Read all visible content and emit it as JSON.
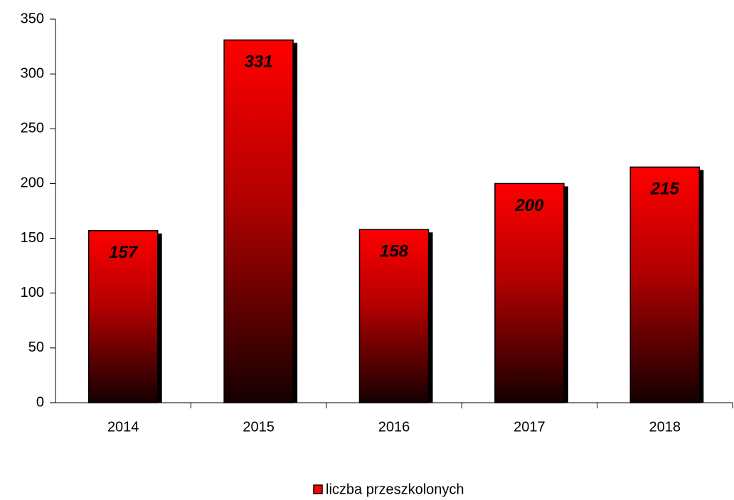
{
  "chart_data": {
    "type": "bar",
    "categories": [
      "2014",
      "2015",
      "2016",
      "2017",
      "2018"
    ],
    "series": [
      {
        "name": "liczba przeszkolonych",
        "color": "#ff0000",
        "values": [
          157,
          331,
          158,
          200,
          215
        ]
      }
    ],
    "ylim": [
      0,
      350
    ],
    "yticks": [
      0,
      50,
      100,
      150,
      200,
      250,
      300,
      350
    ],
    "grid": false,
    "legend": "bottom"
  }
}
